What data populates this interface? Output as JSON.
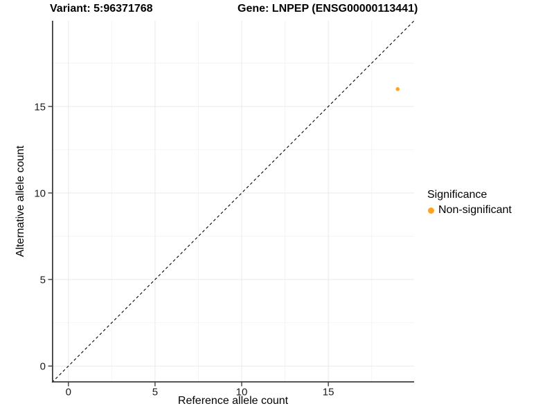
{
  "chart_data": {
    "type": "scatter",
    "title_left": "Variant: 5:96371768",
    "title_right": "Gene: LNPEP (ENSG00000113441)",
    "xlabel": "Reference allele count",
    "ylabel": "Alternative allele count",
    "xlim": [
      -0.95,
      19.95
    ],
    "ylim": [
      -0.95,
      19.95
    ],
    "x_ticks": [
      0,
      5,
      10,
      15
    ],
    "y_ticks": [
      0,
      5,
      10,
      15
    ],
    "x_minor_ticks": [
      2.5,
      7.5,
      12.5,
      17.5
    ],
    "y_minor_ticks": [
      2.5,
      7.5,
      12.5,
      17.5
    ],
    "grid": true,
    "legend_position": "right",
    "identity_line": {
      "style": "dashed",
      "from": -0.95,
      "to": 19.95
    },
    "series": [
      {
        "name": "Non-significant",
        "color": "#FFA320",
        "points": [
          {
            "x": 19,
            "y": 16
          }
        ]
      }
    ]
  },
  "legend": {
    "title": "Significance",
    "items": [
      {
        "label": "Non-significant",
        "color": "#FFA320"
      }
    ]
  },
  "colors": {
    "point_orange": "#FFA320",
    "axis_line": "#3c3c3c",
    "tick_mark": "#3c3c3c",
    "grid_major": "#e9e9e9",
    "grid_minor": "#f4f4f4",
    "identity_line": "#000000",
    "text": "#000000"
  }
}
